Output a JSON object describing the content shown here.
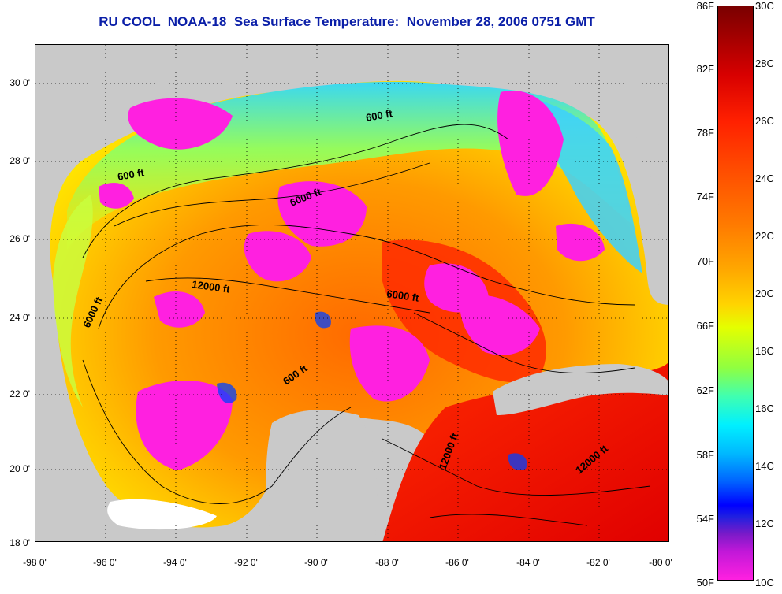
{
  "title": "RU COOL  NOAA-18  Sea Surface Temperature:  November 28, 2006 0751 GMT",
  "lat_labels": [
    "30 0'",
    "28 0'",
    "26 0'",
    "24 0'",
    "22 0'",
    "20 0'",
    "18 0'"
  ],
  "lon_labels": [
    "-98 0'",
    "-96 0'",
    "-94 0'",
    "-92 0'",
    "-90 0'",
    "-88 0'",
    "-86 0'",
    "-84 0'",
    "-82 0'",
    "-80 0'"
  ],
  "contour_labels": [
    "600 ft",
    "600 ft",
    "6000 ft",
    "12000 ft",
    "6000 ft",
    "6000 ft",
    "600 ft",
    "12000 ft",
    "12000 ft"
  ],
  "colorbar": {
    "f_labels": [
      "86F",
      "82F",
      "78F",
      "74F",
      "70F",
      "66F",
      "62F",
      "58F",
      "54F",
      "50F"
    ],
    "c_labels": [
      "30C",
      "28C",
      "26C",
      "24C",
      "22C",
      "20C",
      "18C",
      "16C",
      "14C",
      "12C",
      "10C"
    ]
  },
  "colors": {
    "title": "#0b1fa8",
    "land": "#c9c9c9",
    "warm": "#ff1a00",
    "mid": "#ff9a00",
    "cool": "#ffe800",
    "cold": "#20e0ff",
    "cloud": "#ff20e0"
  }
}
